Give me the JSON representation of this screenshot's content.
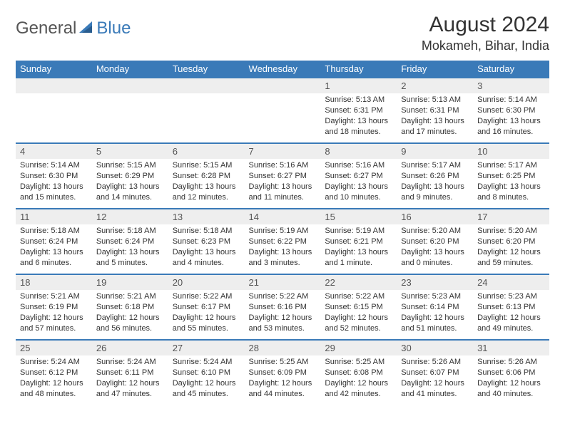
{
  "logo": {
    "general": "General",
    "blue": "Blue"
  },
  "title": "August 2024",
  "location": "Mokameh, Bihar, India",
  "header_color": "#3a7ab8",
  "header_text_color": "#ffffff",
  "daynum_bg": "#eeeeee",
  "text_color": "#333333",
  "dayNames": [
    "Sunday",
    "Monday",
    "Tuesday",
    "Wednesday",
    "Thursday",
    "Friday",
    "Saturday"
  ],
  "startOffset": 4,
  "days": [
    {
      "n": 1,
      "sunrise": "5:13 AM",
      "sunset": "6:31 PM",
      "daylight": "13 hours and 18 minutes."
    },
    {
      "n": 2,
      "sunrise": "5:13 AM",
      "sunset": "6:31 PM",
      "daylight": "13 hours and 17 minutes."
    },
    {
      "n": 3,
      "sunrise": "5:14 AM",
      "sunset": "6:30 PM",
      "daylight": "13 hours and 16 minutes."
    },
    {
      "n": 4,
      "sunrise": "5:14 AM",
      "sunset": "6:30 PM",
      "daylight": "13 hours and 15 minutes."
    },
    {
      "n": 5,
      "sunrise": "5:15 AM",
      "sunset": "6:29 PM",
      "daylight": "13 hours and 14 minutes."
    },
    {
      "n": 6,
      "sunrise": "5:15 AM",
      "sunset": "6:28 PM",
      "daylight": "13 hours and 12 minutes."
    },
    {
      "n": 7,
      "sunrise": "5:16 AM",
      "sunset": "6:27 PM",
      "daylight": "13 hours and 11 minutes."
    },
    {
      "n": 8,
      "sunrise": "5:16 AM",
      "sunset": "6:27 PM",
      "daylight": "13 hours and 10 minutes."
    },
    {
      "n": 9,
      "sunrise": "5:17 AM",
      "sunset": "6:26 PM",
      "daylight": "13 hours and 9 minutes."
    },
    {
      "n": 10,
      "sunrise": "5:17 AM",
      "sunset": "6:25 PM",
      "daylight": "13 hours and 8 minutes."
    },
    {
      "n": 11,
      "sunrise": "5:18 AM",
      "sunset": "6:24 PM",
      "daylight": "13 hours and 6 minutes."
    },
    {
      "n": 12,
      "sunrise": "5:18 AM",
      "sunset": "6:24 PM",
      "daylight": "13 hours and 5 minutes."
    },
    {
      "n": 13,
      "sunrise": "5:18 AM",
      "sunset": "6:23 PM",
      "daylight": "13 hours and 4 minutes."
    },
    {
      "n": 14,
      "sunrise": "5:19 AM",
      "sunset": "6:22 PM",
      "daylight": "13 hours and 3 minutes."
    },
    {
      "n": 15,
      "sunrise": "5:19 AM",
      "sunset": "6:21 PM",
      "daylight": "13 hours and 1 minute."
    },
    {
      "n": 16,
      "sunrise": "5:20 AM",
      "sunset": "6:20 PM",
      "daylight": "13 hours and 0 minutes."
    },
    {
      "n": 17,
      "sunrise": "5:20 AM",
      "sunset": "6:20 PM",
      "daylight": "12 hours and 59 minutes."
    },
    {
      "n": 18,
      "sunrise": "5:21 AM",
      "sunset": "6:19 PM",
      "daylight": "12 hours and 57 minutes."
    },
    {
      "n": 19,
      "sunrise": "5:21 AM",
      "sunset": "6:18 PM",
      "daylight": "12 hours and 56 minutes."
    },
    {
      "n": 20,
      "sunrise": "5:22 AM",
      "sunset": "6:17 PM",
      "daylight": "12 hours and 55 minutes."
    },
    {
      "n": 21,
      "sunrise": "5:22 AM",
      "sunset": "6:16 PM",
      "daylight": "12 hours and 53 minutes."
    },
    {
      "n": 22,
      "sunrise": "5:22 AM",
      "sunset": "6:15 PM",
      "daylight": "12 hours and 52 minutes."
    },
    {
      "n": 23,
      "sunrise": "5:23 AM",
      "sunset": "6:14 PM",
      "daylight": "12 hours and 51 minutes."
    },
    {
      "n": 24,
      "sunrise": "5:23 AM",
      "sunset": "6:13 PM",
      "daylight": "12 hours and 49 minutes."
    },
    {
      "n": 25,
      "sunrise": "5:24 AM",
      "sunset": "6:12 PM",
      "daylight": "12 hours and 48 minutes."
    },
    {
      "n": 26,
      "sunrise": "5:24 AM",
      "sunset": "6:11 PM",
      "daylight": "12 hours and 47 minutes."
    },
    {
      "n": 27,
      "sunrise": "5:24 AM",
      "sunset": "6:10 PM",
      "daylight": "12 hours and 45 minutes."
    },
    {
      "n": 28,
      "sunrise": "5:25 AM",
      "sunset": "6:09 PM",
      "daylight": "12 hours and 44 minutes."
    },
    {
      "n": 29,
      "sunrise": "5:25 AM",
      "sunset": "6:08 PM",
      "daylight": "12 hours and 42 minutes."
    },
    {
      "n": 30,
      "sunrise": "5:26 AM",
      "sunset": "6:07 PM",
      "daylight": "12 hours and 41 minutes."
    },
    {
      "n": 31,
      "sunrise": "5:26 AM",
      "sunset": "6:06 PM",
      "daylight": "12 hours and 40 minutes."
    }
  ]
}
